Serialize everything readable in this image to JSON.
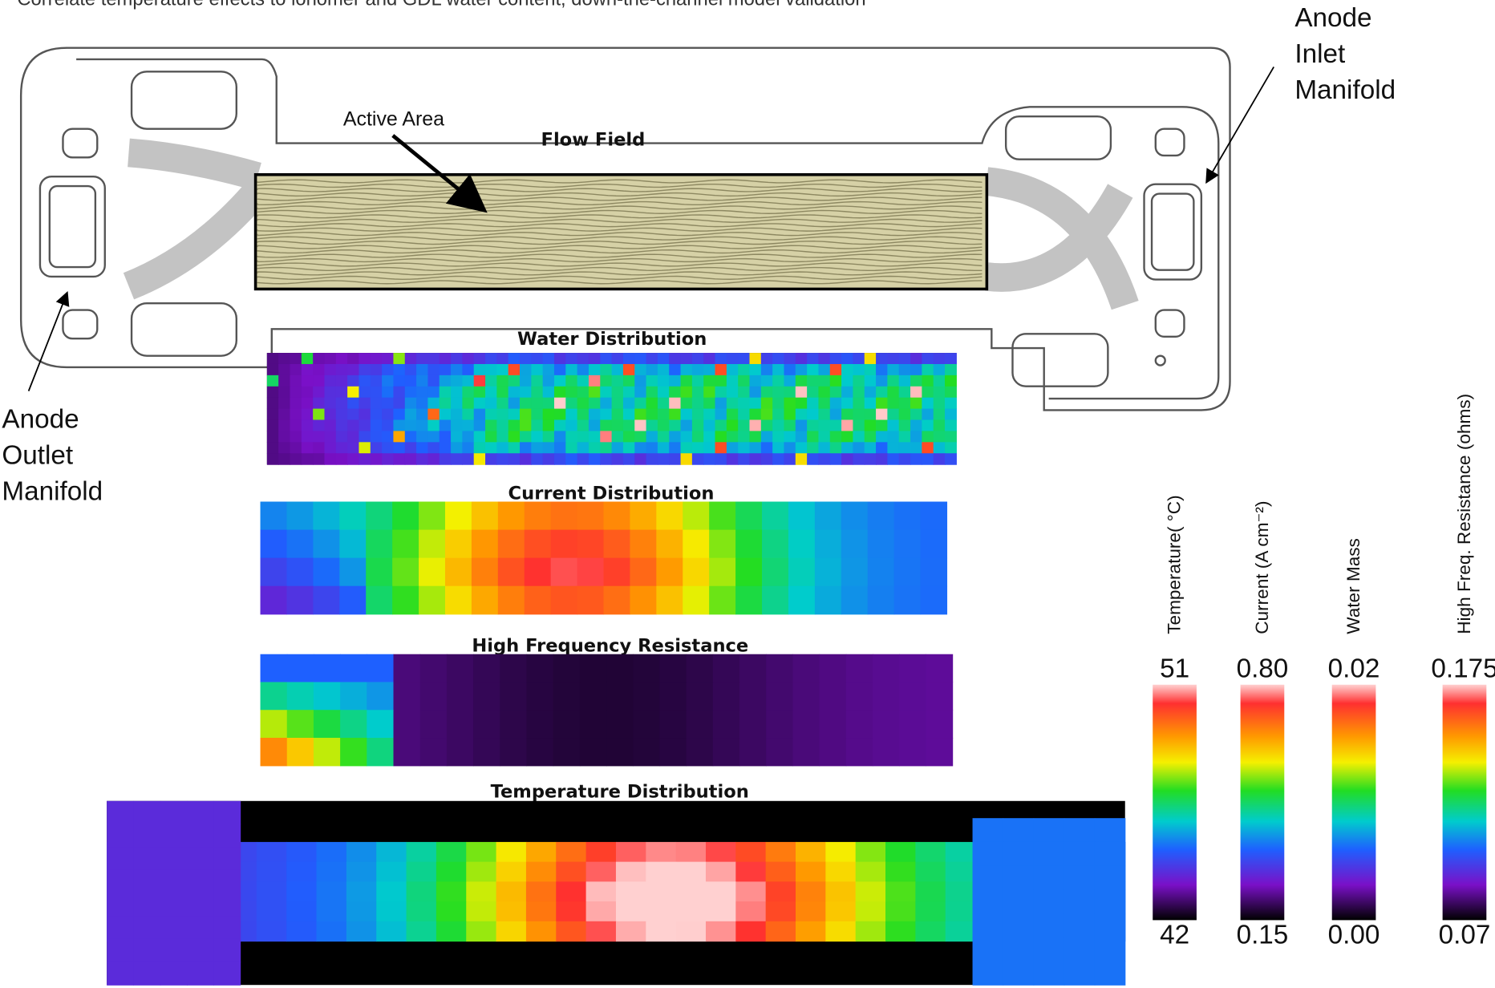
{
  "title": "Correlate temperature effects to ionomer and GDL water content, down-the-channel model validation",
  "annotations": {
    "anode_inlet": [
      "Anode",
      "Inlet",
      "Manifold"
    ],
    "anode_outlet": [
      "Anode",
      "Outlet",
      "Manifold"
    ],
    "active_area": "Active Area"
  },
  "panels": [
    "Flow Field",
    "Water Distribution",
    "Current Distribution",
    "High Frequency Resistance",
    "Temperature Distribution"
  ],
  "colorbars": [
    {
      "label": "Temperature( °C)",
      "max": "51",
      "min": "42"
    },
    {
      "label": "Current (A cm⁻²)",
      "max": "0.80",
      "min": "0.15"
    },
    {
      "label": "Water Mass",
      "max": "0.02",
      "min": "0.00"
    },
    {
      "label": "High Freq. Resistance (ohms)",
      "max": "0.175",
      "min": "0.07"
    }
  ]
}
